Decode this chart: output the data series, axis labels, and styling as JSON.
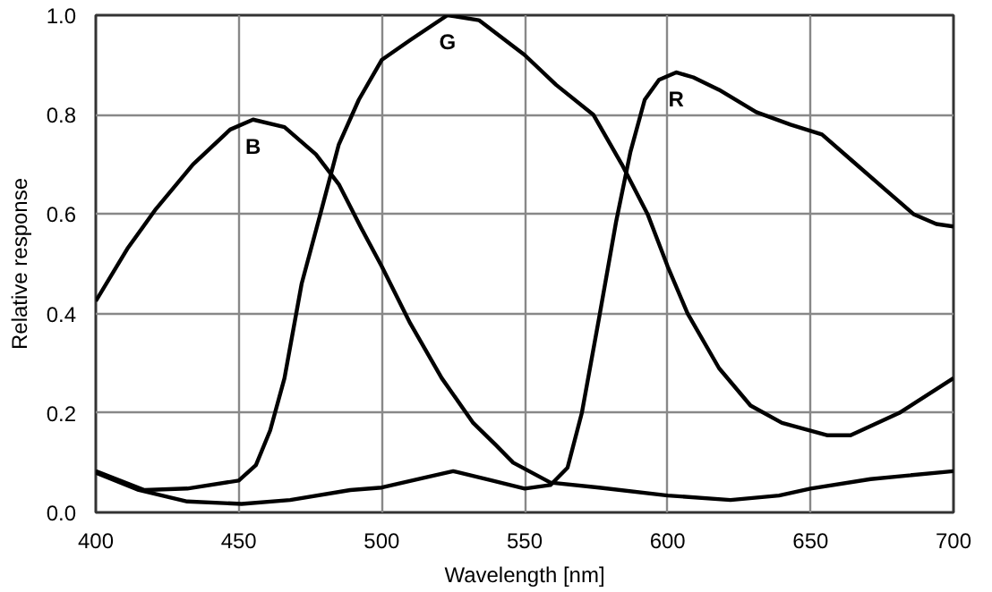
{
  "chart_data": {
    "type": "line",
    "xlabel": "Wavelength [nm]",
    "ylabel": "Relative response",
    "xlim": [
      400,
      700
    ],
    "ylim": [
      0,
      1.0
    ],
    "xticks": [
      400,
      450,
      500,
      550,
      600,
      650,
      700
    ],
    "yticks": [
      {
        "value": 0,
        "label": "0.0"
      },
      {
        "value": 0.2,
        "label": "0.2"
      },
      {
        "value": 0.4,
        "label": "0.4"
      },
      {
        "value": 0.6,
        "label": "0.6"
      },
      {
        "value": 0.8,
        "label": "0.8"
      },
      {
        "value": 1.0,
        "label": "1.0"
      }
    ],
    "grid": true,
    "marker": "none",
    "line_style": "solid",
    "series": [
      {
        "name": "B",
        "color": "#000000",
        "x": [
          400,
          411,
          421,
          434,
          447,
          455,
          466,
          477,
          485,
          493,
          500,
          510,
          521,
          532,
          540,
          546,
          559,
          576,
          600,
          622,
          639,
          650,
          671,
          700
        ],
        "values": [
          0.425,
          0.53,
          0.61,
          0.7,
          0.77,
          0.79,
          0.775,
          0.72,
          0.66,
          0.57,
          0.495,
          0.38,
          0.27,
          0.18,
          0.135,
          0.1,
          0.06,
          0.05,
          0.034,
          0.025,
          0.034,
          0.048,
          0.067,
          0.083
        ]
      },
      {
        "name": "G",
        "color": "#000000",
        "x": [
          400,
          417,
          432,
          450,
          456,
          461,
          466,
          472,
          479,
          485,
          492,
          500,
          510,
          523,
          534,
          550,
          561,
          574,
          584,
          593,
          600,
          607,
          618,
          629,
          640,
          656,
          664,
          681,
          700
        ],
        "values": [
          0.083,
          0.045,
          0.048,
          0.064,
          0.095,
          0.165,
          0.27,
          0.46,
          0.61,
          0.74,
          0.83,
          0.91,
          0.95,
          1.0,
          0.99,
          0.92,
          0.86,
          0.8,
          0.7,
          0.6,
          0.495,
          0.4,
          0.29,
          0.215,
          0.18,
          0.155,
          0.155,
          0.2,
          0.27
        ]
      },
      {
        "name": "R",
        "color": "#000000",
        "x": [
          400,
          415,
          432,
          451,
          468,
          489,
          500,
          515,
          525,
          538,
          550,
          559,
          565,
          570,
          576,
          582,
          587,
          592,
          597,
          603,
          609,
          618,
          631,
          643,
          654,
          664,
          675,
          686,
          694,
          700
        ],
        "values": [
          0.08,
          0.045,
          0.022,
          0.017,
          0.025,
          0.045,
          0.05,
          0.07,
          0.083,
          0.065,
          0.048,
          0.055,
          0.09,
          0.2,
          0.39,
          0.585,
          0.725,
          0.83,
          0.87,
          0.885,
          0.875,
          0.85,
          0.805,
          0.78,
          0.76,
          0.71,
          0.655,
          0.6,
          0.58,
          0.575
        ]
      }
    ]
  }
}
